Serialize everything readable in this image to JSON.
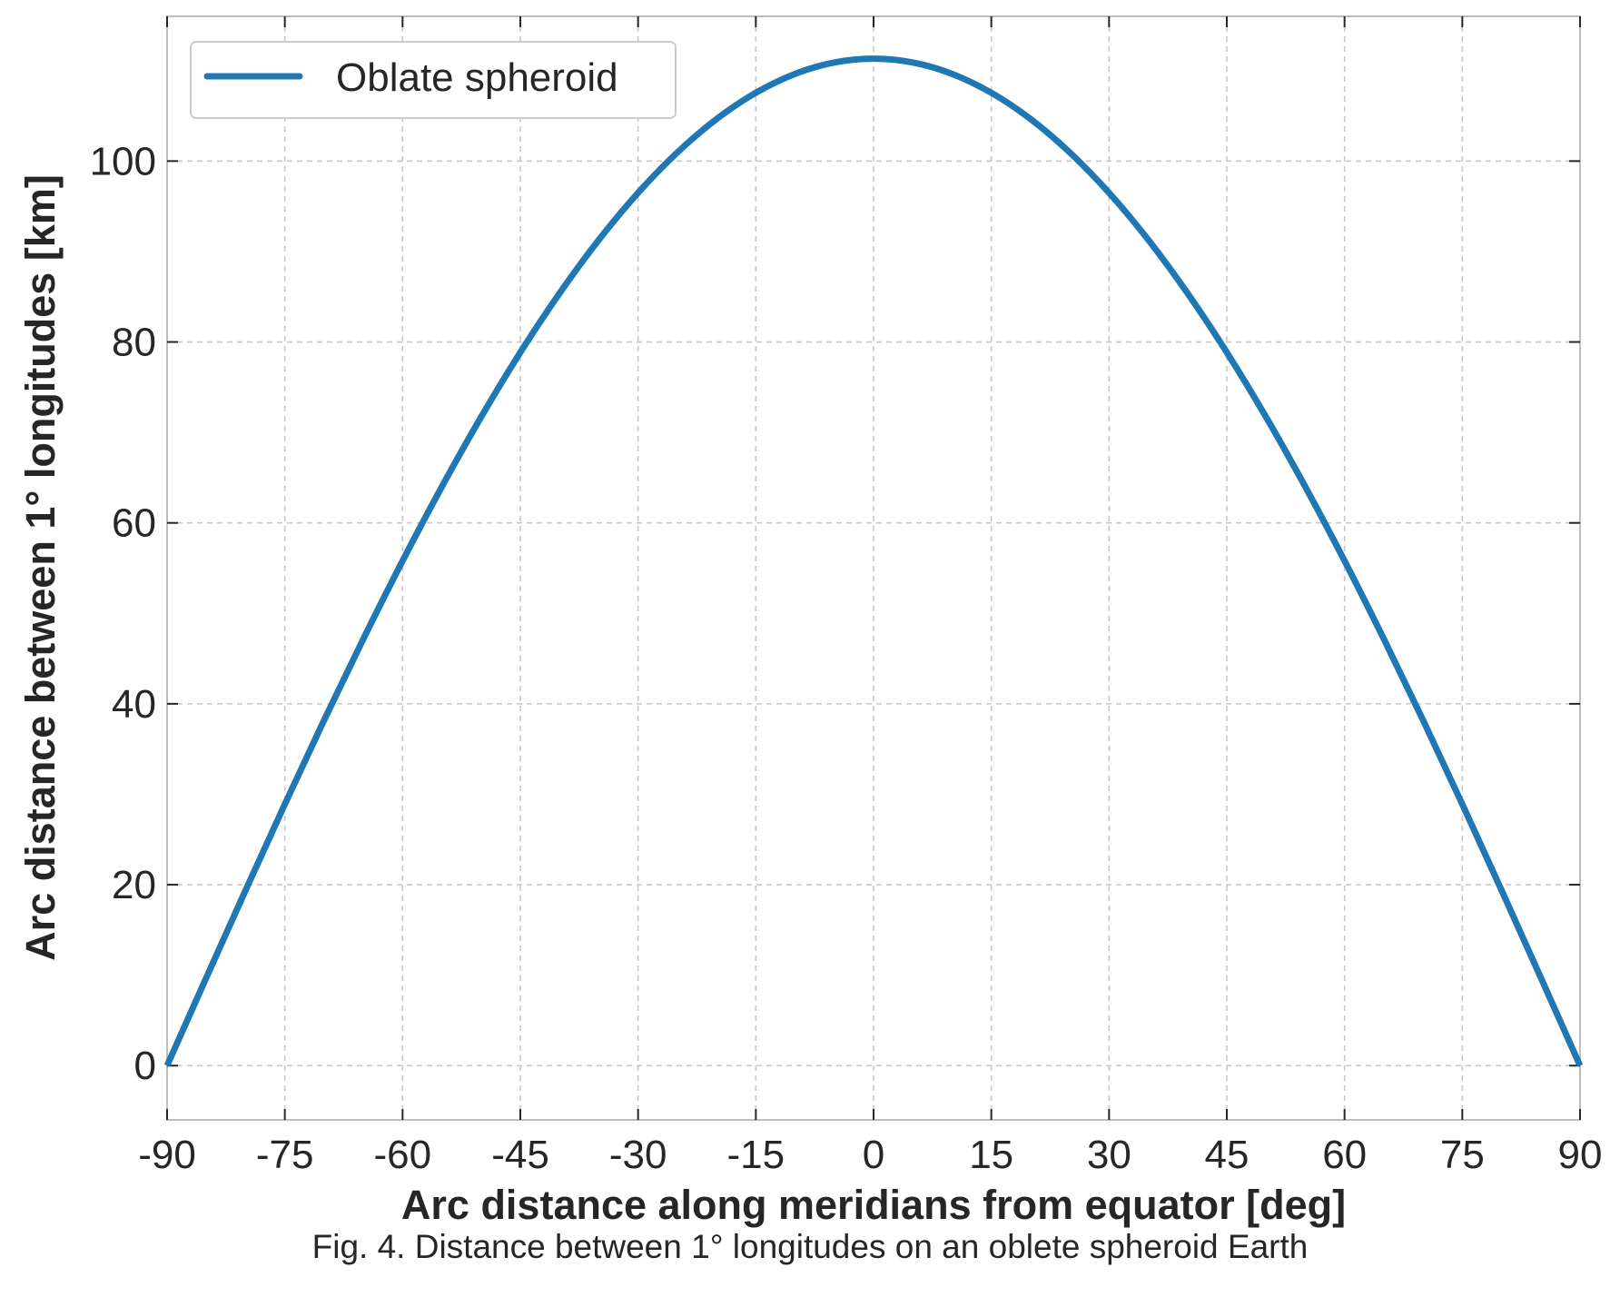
{
  "chart_data": {
    "type": "line",
    "xlabel": "Arc distance along meridians from equator [deg]",
    "ylabel": "Arc distance between 1° longitudes [km]",
    "xlim": [
      -90,
      90
    ],
    "ylim": [
      -6,
      116
    ],
    "xticks": [
      -90,
      -75,
      -60,
      -45,
      -30,
      -15,
      0,
      15,
      30,
      45,
      60,
      75,
      90
    ],
    "yticks": [
      0,
      20,
      40,
      60,
      80,
      100
    ],
    "grid": true,
    "legend_position": "top-left",
    "x": [
      -90,
      -85,
      -80,
      -75,
      -70,
      -65,
      -60,
      -55,
      -50,
      -45,
      -40,
      -35,
      -30,
      -25,
      -20,
      -15,
      -10,
      -5,
      0,
      5,
      10,
      15,
      20,
      25,
      30,
      35,
      40,
      45,
      50,
      55,
      60,
      65,
      70,
      75,
      80,
      85,
      90
    ],
    "series": [
      {
        "name": "Oblate spheroid",
        "color": "#1f77b4",
        "values": [
          0.0,
          9.73,
          19.39,
          28.9,
          38.19,
          47.17,
          55.8,
          63.99,
          71.7,
          78.85,
          85.39,
          91.29,
          96.49,
          100.95,
          104.65,
          107.55,
          109.64,
          110.9,
          111.32,
          110.9,
          109.64,
          107.55,
          104.65,
          100.95,
          96.49,
          91.29,
          85.39,
          78.85,
          71.7,
          63.99,
          55.8,
          47.17,
          38.19,
          28.9,
          19.39,
          9.73,
          0.0
        ]
      }
    ]
  },
  "caption": "Fig. 4. Distance between 1° longitudes on an oblete spheroid Earth"
}
